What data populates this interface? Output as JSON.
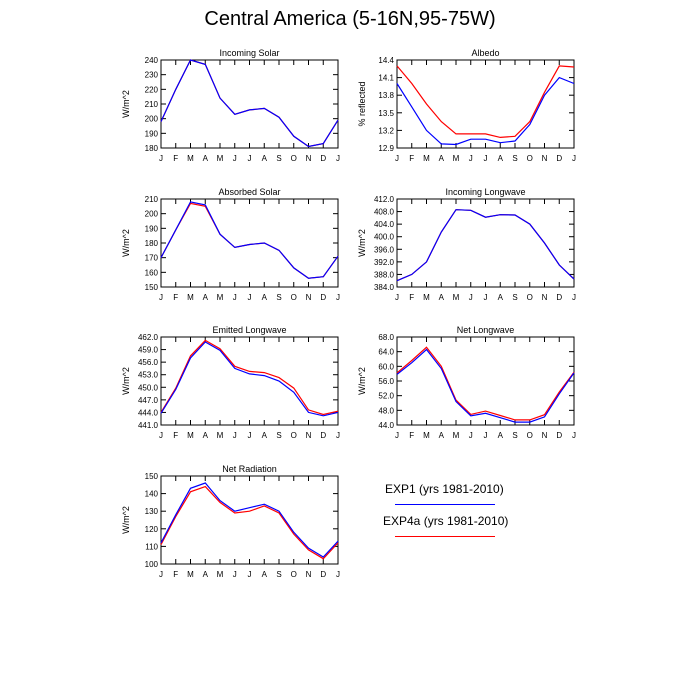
{
  "title": "Central America (5-16N,95-75W)",
  "months": [
    "J",
    "F",
    "M",
    "A",
    "M",
    "J",
    "J",
    "A",
    "S",
    "O",
    "N",
    "D",
    "J"
  ],
  "legend": [
    {
      "label": "EXP1 (yrs 1981-2010)",
      "color": "#0000ff"
    },
    {
      "label": "EXP4a (yrs 1981-2010)",
      "color": "#ff0000"
    }
  ],
  "chart_data": [
    {
      "type": "line",
      "title": "Incoming Solar",
      "ylabel": "W/m^2",
      "ylim": [
        180,
        240
      ],
      "yticks": [
        "180",
        "190",
        "200",
        "210",
        "220",
        "230",
        "240"
      ],
      "categories": [
        "J",
        "F",
        "M",
        "A",
        "M",
        "J",
        "J",
        "A",
        "S",
        "O",
        "N",
        "D",
        "J"
      ],
      "series": [
        {
          "name": "EXP1 (yrs 1981-2010)",
          "color": "#0000ff",
          "values": [
            198,
            220,
            240,
            237,
            214,
            203,
            206,
            207,
            201,
            188,
            181,
            183,
            199
          ]
        },
        {
          "name": "EXP4a (yrs 1981-2010)",
          "color": "#ff0000",
          "values": [
            198,
            220,
            240,
            237,
            214,
            203,
            206,
            207,
            201,
            188,
            181,
            183,
            199
          ]
        }
      ]
    },
    {
      "type": "line",
      "title": "Albedo",
      "ylabel": "% reflected",
      "ylim": [
        12.9,
        14.4
      ],
      "yticks": [
        "12.9",
        "13.2",
        "13.5",
        "13.8",
        "14.1",
        "14.4"
      ],
      "categories": [
        "J",
        "F",
        "M",
        "A",
        "M",
        "J",
        "J",
        "A",
        "S",
        "O",
        "N",
        "D",
        "J"
      ],
      "series": [
        {
          "name": "EXP1 (yrs 1981-2010)",
          "color": "#0000ff",
          "values": [
            14.0,
            13.6,
            13.2,
            12.97,
            12.96,
            13.05,
            13.05,
            12.99,
            13.02,
            13.3,
            13.8,
            14.1,
            14.0
          ]
        },
        {
          "name": "EXP4a (yrs 1981-2010)",
          "color": "#ff0000",
          "values": [
            14.3,
            14.0,
            13.65,
            13.35,
            13.14,
            13.14,
            13.14,
            13.08,
            13.1,
            13.35,
            13.85,
            14.3,
            14.28
          ]
        }
      ]
    },
    {
      "type": "line",
      "title": "Absorbed Solar",
      "ylabel": "W/m^2",
      "ylim": [
        150,
        210
      ],
      "yticks": [
        "150",
        "160",
        "170",
        "180",
        "190",
        "200",
        "210"
      ],
      "categories": [
        "J",
        "F",
        "M",
        "A",
        "M",
        "J",
        "J",
        "A",
        "S",
        "O",
        "N",
        "D",
        "J"
      ],
      "series": [
        {
          "name": "EXP1 (yrs 1981-2010)",
          "color": "#0000ff",
          "values": [
            170,
            189,
            208,
            206,
            186,
            177,
            179,
            180,
            175,
            163,
            156,
            157,
            171
          ]
        },
        {
          "name": "EXP4a (yrs 1981-2010)",
          "color": "#ff0000",
          "values": [
            170,
            189,
            207,
            205,
            186,
            177,
            179,
            180,
            175,
            163,
            156,
            157,
            171
          ]
        }
      ]
    },
    {
      "type": "line",
      "title": "Incoming Longwave",
      "ylabel": "W/m^2",
      "ylim": [
        384.0,
        412.0
      ],
      "yticks": [
        "384.0",
        "388.0",
        "392.0",
        "396.0",
        "400.0",
        "404.0",
        "408.0",
        "412.0"
      ],
      "categories": [
        "J",
        "F",
        "M",
        "A",
        "M",
        "J",
        "J",
        "A",
        "S",
        "O",
        "N",
        "D",
        "J"
      ],
      "series": [
        {
          "name": "EXP1 (yrs 1981-2010)",
          "color": "#0000ff",
          "values": [
            386.0,
            388.0,
            392.0,
            401.5,
            408.6,
            408.4,
            406.2,
            407.0,
            406.9,
            404.0,
            398.0,
            391.0,
            386.5
          ]
        },
        {
          "name": "EXP4a (yrs 1981-2010)",
          "color": "#ff0000",
          "values": [
            386.0,
            388.0,
            392.0,
            401.5,
            408.6,
            408.4,
            406.2,
            407.0,
            406.9,
            404.0,
            398.0,
            391.0,
            386.5
          ]
        }
      ]
    },
    {
      "type": "line",
      "title": "Emitted Longwave",
      "ylabel": "W/m^2",
      "ylim": [
        441.0,
        462.0
      ],
      "yticks": [
        "441.0",
        "444.0",
        "447.0",
        "450.0",
        "453.0",
        "456.0",
        "459.0",
        "462.0"
      ],
      "categories": [
        "J",
        "F",
        "M",
        "A",
        "M",
        "J",
        "J",
        "A",
        "S",
        "O",
        "N",
        "D",
        "J"
      ],
      "series": [
        {
          "name": "EXP1 (yrs 1981-2010)",
          "color": "#0000ff",
          "values": [
            443.8,
            449.5,
            457.0,
            460.8,
            458.8,
            454.5,
            453.2,
            452.8,
            451.5,
            448.8,
            444.0,
            443.2,
            444.0
          ]
        },
        {
          "name": "EXP4a (yrs 1981-2010)",
          "color": "#ff0000",
          "values": [
            444.0,
            449.8,
            457.5,
            461.2,
            459.2,
            455.0,
            453.8,
            453.5,
            452.3,
            449.8,
            444.6,
            443.5,
            444.3
          ]
        }
      ]
    },
    {
      "type": "line",
      "title": "Net Longwave",
      "ylabel": "W/m^2",
      "ylim": [
        44.0,
        68.0
      ],
      "yticks": [
        "44.0",
        "48.0",
        "52.0",
        "56.0",
        "60.0",
        "64.0",
        "68.0"
      ],
      "categories": [
        "J",
        "F",
        "M",
        "A",
        "M",
        "J",
        "J",
        "A",
        "S",
        "O",
        "N",
        "D",
        "J"
      ],
      "series": [
        {
          "name": "EXP1 (yrs 1981-2010)",
          "color": "#0000ff",
          "values": [
            57.8,
            61.0,
            64.6,
            59.4,
            50.4,
            46.5,
            47.2,
            46.0,
            44.8,
            44.8,
            46.2,
            52.5,
            58.2
          ]
        },
        {
          "name": "EXP4a (yrs 1981-2010)",
          "color": "#ff0000",
          "values": [
            58.2,
            61.6,
            65.2,
            60.0,
            50.8,
            46.9,
            47.8,
            46.6,
            45.4,
            45.4,
            46.8,
            53.0,
            58.4
          ]
        }
      ]
    },
    {
      "type": "line",
      "title": "Net Radiation",
      "ylabel": "W/m^2",
      "ylim": [
        100,
        150
      ],
      "yticks": [
        "100",
        "110",
        "120",
        "130",
        "140",
        "150"
      ],
      "categories": [
        "J",
        "F",
        "M",
        "A",
        "M",
        "J",
        "J",
        "A",
        "S",
        "O",
        "N",
        "D",
        "J"
      ],
      "series": [
        {
          "name": "EXP1 (yrs 1981-2010)",
          "color": "#0000ff",
          "values": [
            112,
            128,
            143,
            146,
            136,
            130,
            132,
            134,
            130,
            118,
            109,
            104,
            113
          ]
        },
        {
          "name": "EXP4a (yrs 1981-2010)",
          "color": "#ff0000",
          "values": [
            111,
            127,
            141,
            144,
            135,
            129,
            130,
            133,
            129,
            117,
            108,
            103,
            112
          ]
        }
      ]
    }
  ]
}
